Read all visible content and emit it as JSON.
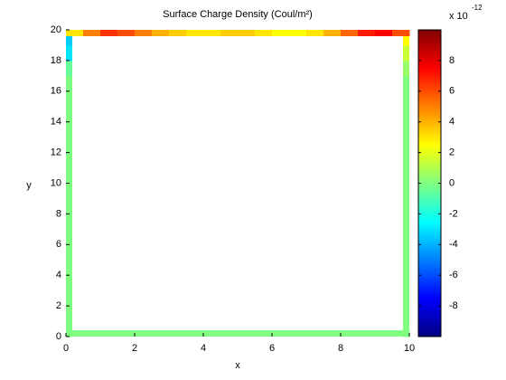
{
  "chart_data": {
    "type": "boundary-map",
    "title": "Surface Charge Density (Coul/m²)",
    "xlabel": "x",
    "ylabel": "y",
    "xlim": [
      0,
      10
    ],
    "ylim": [
      0,
      20
    ],
    "xticks": [
      0,
      2,
      4,
      6,
      8,
      10
    ],
    "yticks": [
      0,
      2,
      4,
      6,
      8,
      10,
      12,
      14,
      16,
      18,
      20
    ],
    "colormap": "jet",
    "clim": [
      -10,
      10
    ],
    "cticks": [
      -8,
      -6,
      -4,
      -2,
      0,
      2,
      4,
      6,
      8
    ],
    "color_multiplier": {
      "base": "x 10",
      "exponent": "-12"
    },
    "edges": [
      {
        "side": "left",
        "bins": [
          0,
          1,
          2,
          3,
          4,
          5,
          6,
          7,
          8,
          9,
          10,
          11,
          12,
          13,
          14,
          15,
          16,
          17,
          18,
          19,
          20
        ],
        "values": [
          0,
          0,
          0,
          0,
          0,
          0,
          0,
          0,
          0,
          0,
          0,
          0,
          0,
          0,
          0,
          0,
          0,
          -0.5,
          -3,
          -3.5
        ]
      },
      {
        "side": "right",
        "bins": [
          0,
          1,
          2,
          3,
          4,
          5,
          6,
          7,
          8,
          9,
          10,
          11,
          12,
          13,
          14,
          15,
          16,
          17,
          18,
          19,
          20
        ],
        "values": [
          0,
          0,
          0,
          0,
          0,
          0,
          0,
          0,
          0,
          0,
          0,
          0,
          0,
          0,
          0,
          0,
          0,
          0.5,
          1.5,
          2.5
        ]
      },
      {
        "side": "bottom",
        "bins": [
          0,
          1,
          2,
          3,
          4,
          5,
          6,
          7,
          8,
          9,
          10
        ],
        "values": [
          0,
          0,
          0,
          0,
          0,
          0,
          0,
          0,
          0,
          0
        ]
      },
      {
        "side": "top",
        "bins": [
          0,
          0.5,
          1,
          1.5,
          2,
          2.5,
          3,
          3.5,
          4,
          4.5,
          5,
          5.5,
          6,
          6.5,
          7,
          7.5,
          8,
          8.5,
          9,
          9.5,
          10
        ],
        "values": [
          3,
          5,
          6.5,
          6,
          5,
          4,
          3.5,
          3,
          3,
          3.5,
          3.5,
          3,
          2.5,
          2.5,
          3,
          4,
          5.5,
          7,
          7.5,
          6
        ]
      }
    ]
  }
}
